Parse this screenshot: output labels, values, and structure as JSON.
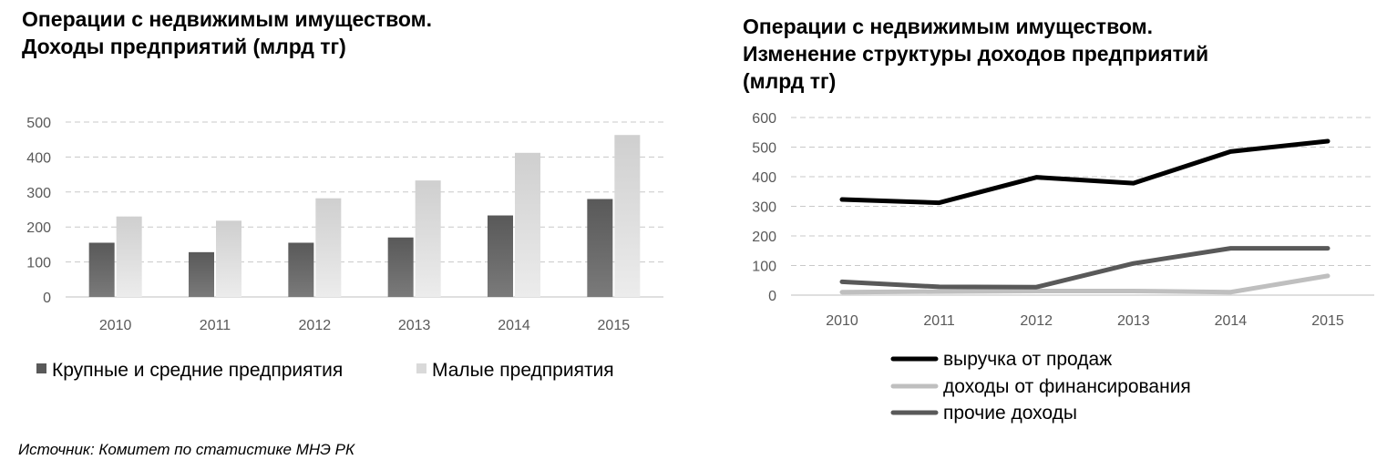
{
  "left": {
    "title": "Операции с недвижимым имуществом.\nДоходы предприятий (млрд тг)"
  },
  "right": {
    "title": "Операции с недвижимым имуществом.\nИзменение структуры доходов предприятий\n(млрд тг)"
  },
  "source": "Источник: Комитет по статистике МНЭ РК",
  "chart_data": [
    {
      "type": "bar",
      "title": "Операции с недвижимым имуществом. Доходы предприятий (млрд тг)",
      "categories": [
        "2010",
        "2011",
        "2012",
        "2013",
        "2014",
        "2015"
      ],
      "series": [
        {
          "name": "Крупные и средние предприятия",
          "values": [
            155,
            128,
            155,
            170,
            233,
            280
          ],
          "color": "#595959"
        },
        {
          "name": "Малые предприятия",
          "values": [
            230,
            218,
            282,
            333,
            412,
            463
          ],
          "color": "#d9d9d9"
        }
      ],
      "yticks": [
        "0",
        "100",
        "200",
        "300",
        "400",
        "500"
      ],
      "ylim": [
        0,
        500
      ],
      "grid": true,
      "legend": "bottom"
    },
    {
      "type": "line",
      "title": "Операции с недвижимым имуществом. Изменение структуры доходов предприятий (млрд тг)",
      "categories": [
        "2010",
        "2011",
        "2012",
        "2013",
        "2014",
        "2015"
      ],
      "series": [
        {
          "name": "выручка от продаж",
          "values": [
            323,
            312,
            398,
            378,
            485,
            520
          ],
          "color": "#000000"
        },
        {
          "name": "доходы от финансирования",
          "values": [
            10,
            12,
            14,
            14,
            10,
            65
          ],
          "color": "#bfbfbf"
        },
        {
          "name": "прочие доходы",
          "values": [
            45,
            28,
            27,
            107,
            158,
            158
          ],
          "color": "#595959"
        }
      ],
      "yticks": [
        "0",
        "100",
        "200",
        "300",
        "400",
        "500",
        "600"
      ],
      "ylim": [
        0,
        600
      ],
      "grid": true,
      "legend": "bottom"
    }
  ]
}
